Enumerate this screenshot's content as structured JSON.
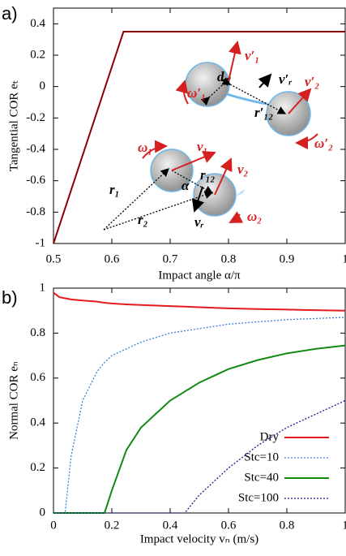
{
  "chart_data": [
    {
      "type": "line",
      "panel_label": "a)",
      "xlabel": "Impact angle α/π",
      "ylabel": "Tangential COR eₜ",
      "x": [
        0.5,
        0.62,
        1
      ],
      "series": [
        {
          "name": null,
          "color": "#8b0000",
          "values": [
            -1,
            0.35,
            0.35
          ]
        }
      ],
      "xlim": [
        0.5,
        1
      ],
      "ylim": [
        -1,
        0.5
      ],
      "xticks": [
        0.5,
        0.6,
        0.7,
        0.8,
        0.9,
        1
      ],
      "yticks": [
        -1,
        -0.8,
        -0.6,
        -0.4,
        -0.2,
        0,
        0.2,
        0.4
      ],
      "annotations": [
        {
          "text": "ω₁",
          "color": "#d62020"
        },
        {
          "text": "v₁",
          "color": "#d62020"
        },
        {
          "text": "r₁",
          "color": "#000000"
        },
        {
          "text": "α",
          "color": "#000000"
        },
        {
          "text": "r₁₂",
          "color": "#000000"
        },
        {
          "text": "v₂",
          "color": "#d62020"
        },
        {
          "text": "r₂",
          "color": "#000000"
        },
        {
          "text": "vᵣ",
          "color": "#000000"
        },
        {
          "text": "ω₂",
          "color": "#d62020"
        },
        {
          "text": "d",
          "color": "#000000"
        },
        {
          "text": "v′₁",
          "color": "#d62020"
        },
        {
          "text": "v′ᵣ",
          "color": "#000000"
        },
        {
          "text": "v′₂",
          "color": "#d62020"
        },
        {
          "text": "ω′₁",
          "color": "#d62020"
        },
        {
          "text": "ω′₂",
          "color": "#d62020"
        },
        {
          "text": "r′₁₂",
          "color": "#000000"
        }
      ]
    },
    {
      "type": "line",
      "panel_label": "b)",
      "xlabel": "Impact velocity vₙ (m/s)",
      "ylabel": "Normal COR eₙ",
      "x": [
        0,
        0.02,
        0.04,
        0.06,
        0.1,
        0.15,
        0.175,
        0.2,
        0.25,
        0.3,
        0.4,
        0.45,
        0.5,
        0.6,
        0.7,
        0.8,
        0.9,
        1
      ],
      "series": [
        {
          "name": "Dry",
          "color": "#e41a1c",
          "dash": "solid",
          "values": [
            0.98,
            0.96,
            0.955,
            0.95,
            0.945,
            0.94,
            0.935,
            0.932,
            0.928,
            0.925,
            0.92,
            0.918,
            0.915,
            0.91,
            0.907,
            0.905,
            0.902,
            0.9
          ]
        },
        {
          "name": "Stc=10",
          "color": "#3a7fd5",
          "dash": "dotted",
          "values": [
            0,
            0,
            0,
            0.25,
            0.5,
            0.63,
            0.67,
            0.7,
            0.73,
            0.76,
            0.8,
            0.81,
            0.82,
            0.84,
            0.85,
            0.86,
            0.865,
            0.87
          ]
        },
        {
          "name": "Stc=40",
          "color": "#118a11",
          "dash": "solid",
          "values": [
            0,
            0,
            0,
            0,
            0,
            0,
            0,
            0.1,
            0.28,
            0.38,
            0.5,
            0.54,
            0.58,
            0.64,
            0.68,
            0.71,
            0.73,
            0.745
          ]
        },
        {
          "name": "Stc=100",
          "color": "#1a1a8c",
          "dash": "dotted",
          "values": [
            0,
            0,
            0,
            0,
            0,
            0,
            0,
            0,
            0,
            0,
            0,
            0,
            0.08,
            0.2,
            0.3,
            0.38,
            0.44,
            0.5
          ]
        }
      ],
      "xlim": [
        0,
        1
      ],
      "ylim": [
        0,
        1
      ],
      "xticks": [
        0,
        0.2,
        0.4,
        0.6,
        0.8,
        1
      ],
      "yticks": [
        0,
        0.2,
        0.4,
        0.6,
        0.8,
        1
      ],
      "legend": "lower right"
    }
  ]
}
